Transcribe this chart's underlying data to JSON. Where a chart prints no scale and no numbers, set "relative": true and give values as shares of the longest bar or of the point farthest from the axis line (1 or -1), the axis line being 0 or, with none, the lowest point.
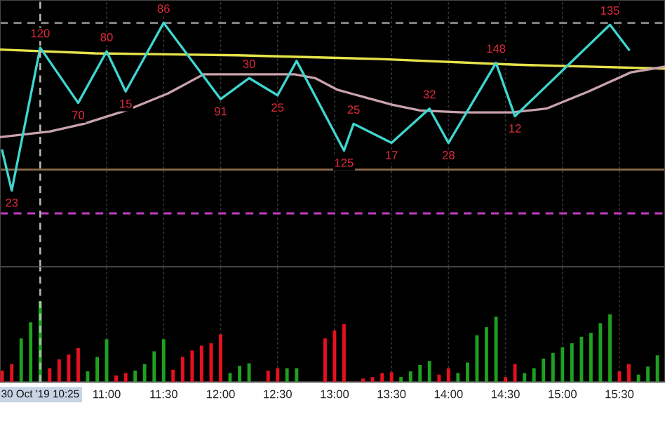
{
  "chart_data": [
    {
      "type": "line",
      "relative": true,
      "xlim": [
        10.064,
        15.9
      ],
      "xticks": [
        {
          "value": 11,
          "label": null
        },
        {
          "value": 11.5,
          "label": null
        },
        {
          "value": 12,
          "label": null
        },
        {
          "value": 12.5,
          "label": null
        },
        {
          "value": 13,
          "label": null
        },
        {
          "value": 13.5,
          "label": null
        },
        {
          "value": 14,
          "label": null
        },
        {
          "value": 14.5,
          "label": null
        },
        {
          "value": 15,
          "label": null
        },
        {
          "value": 15.5,
          "label": null
        }
      ],
      "tick_labels": false,
      "grid": "x",
      "marker": "none",
      "line_style": "solid",
      "series": [
        {
          "color": "#e6e24a",
          "x": [
            10.064,
            10.9,
            12.15,
            13.4,
            14.6,
            15.9
          ],
          "values": [
            0.86,
            0.84,
            0.83,
            0.81,
            0.78,
            0.76
          ]
        },
        {
          "color": "#c9a3ab",
          "x": [
            10.064,
            10.5,
            10.8,
            11.17,
            11.54,
            11.85,
            12.04,
            12.65,
            12.83,
            13.02,
            13.26,
            13.51,
            13.75,
            14.12,
            14.55,
            14.86,
            15.23,
            15.6,
            15.9
          ],
          "values": [
            0.4,
            0.43,
            0.47,
            0.54,
            0.63,
            0.73,
            0.73,
            0.73,
            0.71,
            0.65,
            0.61,
            0.57,
            0.54,
            0.53,
            0.53,
            0.55,
            0.64,
            0.74,
            0.77
          ]
        },
        {
          "color": "#3fd6d0",
          "x": [
            10.083,
            10.167,
            10.417,
            10.75,
            11,
            11.167,
            11.5,
            12,
            12.25,
            12.5,
            12.667,
            13.083,
            13.167,
            13.5,
            13.833,
            14,
            14.417,
            14.583,
            15.417,
            15.583
          ],
          "values": [
            0.33,
            0.12,
            0.87,
            0.58,
            0.85,
            0.64,
            1,
            0.6,
            0.71,
            0.62,
            0.8,
            0.33,
            0.47,
            0.37,
            0.55,
            0.37,
            0.79,
            0.51,
            0.99,
            0.86
          ]
        }
      ],
      "annotations": [
        {
          "text": "23",
          "x": 10.167,
          "y": 0.12
        },
        {
          "text": "120",
          "x": 10.417,
          "y": 0.87
        },
        {
          "text": "70",
          "x": 10.75,
          "y": 0.58
        },
        {
          "text": "80",
          "x": 11,
          "y": 0.85
        },
        {
          "text": "15",
          "x": 11.167,
          "y": 0.64
        },
        {
          "text": "86",
          "x": 11.5,
          "y": 1
        },
        {
          "text": "91",
          "x": 12,
          "y": 0.6
        },
        {
          "text": "30",
          "x": 12.25,
          "y": 0.71
        },
        {
          "text": "25",
          "x": 12.5,
          "y": 0.62
        },
        {
          "text": "125",
          "x": 13.083,
          "y": 0.33
        },
        {
          "text": "25",
          "x": 13.167,
          "y": 0.47
        },
        {
          "text": "17",
          "x": 13.5,
          "y": 0.37
        },
        {
          "text": "32",
          "x": 13.833,
          "y": 0.55
        },
        {
          "text": "28",
          "x": 14,
          "y": 0.37
        },
        {
          "text": "148",
          "x": 14.417,
          "y": 0.79
        },
        {
          "text": "12",
          "x": 14.583,
          "y": 0.51
        },
        {
          "text": "135",
          "x": 15.417,
          "y": 0.99
        }
      ],
      "ref_lines": [
        {
          "axis": "y",
          "value": 1.0,
          "color": "#8a8a8a",
          "line_style": "dashed"
        },
        {
          "axis": "y",
          "value": 0.23,
          "color": "#8b6a4a",
          "line_style": "solid"
        },
        {
          "axis": "y",
          "value": 0,
          "color": "#c43cc4",
          "line_style": "dashed"
        },
        {
          "axis": "x",
          "value": 10.417,
          "color": "#bbbbbb",
          "line_style": "dashed"
        }
      ]
    },
    {
      "type": "bar",
      "relative": true,
      "xlim": [
        10.064,
        15.9
      ],
      "xticks": [
        {
          "value": 11,
          "label": "11:00"
        },
        {
          "value": 11.5,
          "label": "11:30"
        },
        {
          "value": 12,
          "label": "12:00"
        },
        {
          "value": 12.5,
          "label": "12:30"
        },
        {
          "value": 13,
          "label": "13:00"
        },
        {
          "value": 13.5,
          "label": "13:30"
        },
        {
          "value": 14,
          "label": "14:00"
        },
        {
          "value": 14.5,
          "label": "14:30"
        },
        {
          "value": 15,
          "label": "15:00"
        },
        {
          "value": 15.5,
          "label": "15:30"
        }
      ],
      "tick_labels": "x",
      "grid": "x",
      "x": [
        10.083,
        10.167,
        10.25,
        10.333,
        10.417,
        10.5,
        10.583,
        10.667,
        10.75,
        10.833,
        10.917,
        11,
        11.083,
        11.167,
        11.25,
        11.333,
        11.417,
        11.5,
        11.583,
        11.667,
        11.75,
        11.833,
        11.917,
        12,
        12.083,
        12.167,
        12.25,
        12.333,
        12.417,
        12.5,
        12.583,
        12.667,
        12.75,
        12.833,
        12.917,
        13,
        13.083,
        13.167,
        13.25,
        13.333,
        13.417,
        13.5,
        13.583,
        13.667,
        13.75,
        13.833,
        13.917,
        14,
        14.083,
        14.167,
        14.25,
        14.333,
        14.417,
        14.5,
        14.583,
        14.667,
        14.75,
        14.833,
        14.917,
        15,
        15.083,
        15.167,
        15.25,
        15.333,
        15.417,
        15.5,
        15.583,
        15.667,
        15.75,
        15.833
      ],
      "values": [
        0.14,
        0.22,
        0.54,
        0.74,
        1,
        0.17,
        0.28,
        0.34,
        0.42,
        0.13,
        0.31,
        0.53,
        0.08,
        0.11,
        0.14,
        0.22,
        0.38,
        0.53,
        0.15,
        0.31,
        0.39,
        0.45,
        0.48,
        0.59,
        0.11,
        0.2,
        0.23,
        null,
        0.14,
        0.17,
        0.17,
        0.17,
        null,
        null,
        0.54,
        0.64,
        0.72,
        null,
        0.04,
        0.06,
        0.11,
        0.12,
        0.06,
        0.13,
        0.21,
        0.26,
        0.09,
        0.17,
        0.11,
        0.24,
        0.58,
        0.68,
        0.81,
        0.06,
        0.22,
        0.11,
        0.17,
        0.29,
        0.36,
        0.43,
        0.48,
        0.56,
        0.61,
        0.73,
        0.84,
        0.13,
        0.22,
        0.09,
        0.19,
        0.33
      ],
      "colors": [
        "#e8101e",
        "#e8101e",
        "#1fa01f",
        "#1fa01f",
        "#1fa01f",
        "#e8101e",
        "#e8101e",
        "#e8101e",
        "#e8101e",
        "#1fa01f",
        "#1fa01f",
        "#1fa01f",
        "#e8101e",
        "#e8101e",
        "#1fa01f",
        "#1fa01f",
        "#1fa01f",
        "#1fa01f",
        "#e8101e",
        "#e8101e",
        "#e8101e",
        "#e8101e",
        "#e8101e",
        "#e8101e",
        "#1fa01f",
        "#1fa01f",
        "#1fa01f",
        "#e8101e",
        "#e8101e",
        "#e8101e",
        "#1fa01f",
        "#1fa01f",
        "#e8101e",
        "#e8101e",
        "#e8101e",
        "#e8101e",
        "#e8101e",
        "#e8101e",
        "#e8101e",
        "#e8101e",
        "#e8101e",
        "#e8101e",
        "#1fa01f",
        "#1fa01f",
        "#1fa01f",
        "#1fa01f",
        "#e8101e",
        "#e8101e",
        "#1fa01f",
        "#1fa01f",
        "#1fa01f",
        "#1fa01f",
        "#1fa01f",
        "#e8101e",
        "#e8101e",
        "#1fa01f",
        "#1fa01f",
        "#1fa01f",
        "#1fa01f",
        "#1fa01f",
        "#1fa01f",
        "#1fa01f",
        "#1fa01f",
        "#1fa01f",
        "#1fa01f",
        "#e8101e",
        "#e8101e",
        "#1fa01f",
        "#1fa01f",
        "#1fa01f"
      ],
      "ref_lines": [
        {
          "axis": "x",
          "value": 10.417,
          "label": "30 Oct '19 10:25",
          "color": "#bbbbbb",
          "line_style": "dashed"
        }
      ]
    }
  ]
}
